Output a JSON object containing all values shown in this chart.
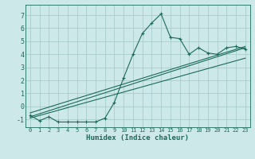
{
  "xlabel": "Humidex (Indice chaleur)",
  "ylabel": "",
  "x_data": [
    0,
    1,
    2,
    3,
    4,
    5,
    6,
    7,
    8,
    9,
    10,
    11,
    12,
    13,
    14,
    15,
    16,
    17,
    18,
    19,
    20,
    21,
    22,
    23
  ],
  "main_line": [
    -0.7,
    -1.1,
    -0.8,
    -1.2,
    -1.2,
    -1.2,
    -1.2,
    -1.2,
    -0.9,
    0.3,
    2.2,
    4.0,
    5.6,
    6.4,
    7.1,
    5.3,
    5.2,
    4.0,
    4.5,
    4.1,
    4.0,
    4.5,
    4.6,
    4.4
  ],
  "diag_lines": [
    {
      "x": [
        0,
        23
      ],
      "y": [
        -0.8,
        4.5
      ]
    },
    {
      "x": [
        0,
        23
      ],
      "y": [
        -0.9,
        3.7
      ]
    },
    {
      "x": [
        0,
        23
      ],
      "y": [
        -0.5,
        4.6
      ]
    }
  ],
  "bg_color": "#cce8e8",
  "grid_color": "#aacccc",
  "line_color": "#1a6b5a",
  "ylim": [
    -1.6,
    7.8
  ],
  "xlim": [
    -0.5,
    23.5
  ],
  "yticks": [
    -1,
    0,
    1,
    2,
    3,
    4,
    5,
    6,
    7
  ],
  "xticks": [
    0,
    1,
    2,
    3,
    4,
    5,
    6,
    7,
    8,
    9,
    10,
    11,
    12,
    13,
    14,
    15,
    16,
    17,
    18,
    19,
    20,
    21,
    22,
    23
  ]
}
